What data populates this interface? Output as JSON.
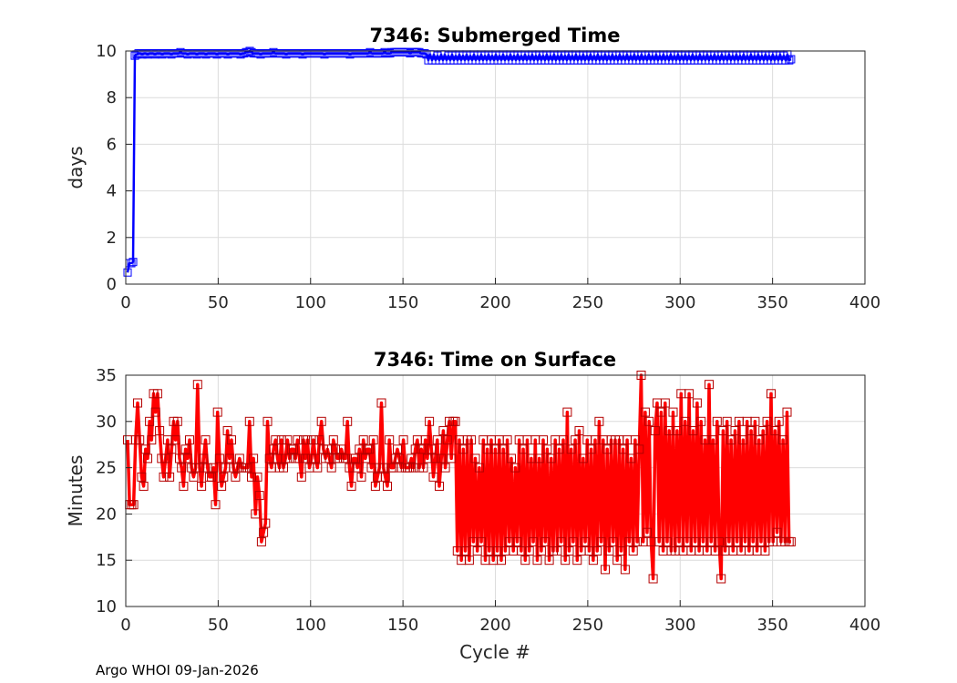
{
  "footer": "Argo WHOI 09-Jan-2026",
  "colors": {
    "series_top": "#0000ff",
    "series_bottom": "#ff0000",
    "marker_bottom": "#b40000",
    "grid": "#dcdcdc",
    "axes": "#262626"
  },
  "chart_data": [
    {
      "type": "line",
      "title": "7346: Submerged Time",
      "xlabel": "",
      "ylabel": "days",
      "xlim": [
        0,
        400
      ],
      "ylim": [
        0,
        10
      ],
      "xticks": [
        "0",
        "50",
        "100",
        "150",
        "200",
        "250",
        "300",
        "350",
        "400"
      ],
      "yticks": [
        "0",
        "2",
        "4",
        "6",
        "8",
        "10"
      ],
      "grid": true,
      "marker": "square",
      "series": [
        {
          "cycle_range": [
            1,
            360
          ],
          "values": [
            0.5,
            0.9,
            0.9,
            0.95,
            9.8,
            9.85,
            9.9,
            9.9,
            9.85,
            9.9,
            9.9,
            9.85,
            9.9,
            9.9,
            9.9,
            9.85,
            9.9,
            9.9,
            9.9,
            9.85,
            9.9,
            9.9,
            9.9,
            9.9,
            9.85,
            9.9,
            9.9,
            9.9,
            9.9,
            9.95,
            9.9,
            9.9,
            9.9,
            9.85,
            9.9,
            9.9,
            9.9,
            9.9,
            9.85,
            9.9,
            9.9,
            9.9,
            9.9,
            9.85,
            9.9,
            9.9,
            9.9,
            9.9,
            9.9,
            9.85,
            9.9,
            9.9,
            9.9,
            9.9,
            9.9,
            9.85,
            9.9,
            9.9,
            9.9,
            9.9,
            9.9,
            9.9,
            9.85,
            9.9,
            9.9,
            9.95,
            9.95,
            10.0,
            9.95,
            9.9,
            9.9,
            9.9,
            9.9,
            9.85,
            9.9,
            9.9,
            9.9,
            9.9,
            9.9,
            9.9,
            9.95,
            9.9,
            9.9,
            9.9,
            9.9,
            9.9,
            9.9,
            9.85,
            9.9,
            9.9,
            9.9,
            9.9,
            9.9,
            9.9,
            9.9,
            9.9,
            9.85,
            9.9,
            9.9,
            9.9,
            9.9,
            9.9,
            9.9,
            9.9,
            9.9,
            9.9,
            9.9,
            9.9,
            9.85,
            9.9,
            9.9,
            9.9,
            9.9,
            9.9,
            9.9,
            9.9,
            9.9,
            9.9,
            9.9,
            9.9,
            9.9,
            9.9,
            9.85,
            9.9,
            9.9,
            9.9,
            9.9,
            9.9,
            9.9,
            9.9,
            9.9,
            9.9,
            9.9,
            9.95,
            9.9,
            9.9,
            9.9,
            9.9,
            9.9,
            9.9,
            9.9,
            9.95,
            9.9,
            9.9,
            9.9,
            9.95,
            9.95,
            9.95,
            9.95,
            9.95,
            9.95,
            9.95,
            9.95,
            9.95,
            9.95,
            9.9,
            9.95,
            9.95,
            9.95,
            9.95,
            9.95,
            9.9,
            9.9,
            9.9,
            9.85,
            9.6,
            9.85,
            9.6,
            9.85,
            9.6,
            9.8,
            9.6,
            9.85,
            9.6,
            9.85,
            9.6,
            9.8,
            9.6,
            9.85,
            9.6,
            9.8,
            9.6,
            9.85,
            9.6,
            9.8,
            9.6,
            9.85,
            9.6,
            9.8,
            9.6,
            9.85,
            9.6,
            9.8,
            9.6,
            9.85,
            9.6,
            9.8,
            9.6,
            9.85,
            9.6,
            9.8,
            9.6,
            9.85,
            9.6,
            9.8,
            9.6,
            9.85,
            9.6,
            9.8,
            9.6,
            9.85,
            9.6,
            9.8,
            9.6,
            9.85,
            9.6,
            9.8,
            9.6,
            9.85,
            9.6,
            9.8,
            9.6,
            9.85,
            9.6,
            9.8,
            9.6,
            9.85,
            9.6,
            9.8,
            9.6,
            9.85,
            9.6,
            9.8,
            9.6,
            9.85,
            9.6,
            9.8,
            9.6,
            9.85,
            9.6,
            9.8,
            9.6,
            9.85,
            9.6,
            9.8,
            9.6,
            9.85,
            9.6,
            9.8,
            9.6,
            9.85,
            9.6,
            9.8,
            9.6,
            9.85,
            9.6,
            9.8,
            9.6,
            9.85,
            9.6,
            9.8,
            9.6,
            9.85,
            9.6,
            9.8,
            9.6,
            9.85,
            9.6,
            9.8,
            9.6,
            9.85,
            9.6,
            9.8,
            9.6,
            9.85,
            9.6,
            9.8,
            9.6,
            9.85,
            9.6,
            9.8,
            9.6,
            9.85,
            9.6,
            9.8,
            9.6,
            9.85,
            9.6,
            9.8,
            9.6,
            9.85,
            9.6,
            9.8,
            9.6,
            9.85,
            9.6,
            9.8,
            9.6,
            9.85,
            9.6,
            9.8,
            9.6,
            9.85,
            9.6,
            9.8,
            9.6,
            9.85,
            9.6,
            9.8,
            9.6,
            9.85,
            9.6,
            9.8,
            9.6,
            9.85,
            9.6,
            9.8,
            9.6,
            9.85,
            9.6,
            9.8,
            9.6,
            9.85,
            9.6,
            9.8,
            9.6,
            9.85,
            9.6,
            9.8,
            9.6,
            9.85,
            9.6,
            9.8,
            9.6,
            9.85,
            9.6,
            9.8,
            9.6,
            9.85,
            9.6,
            9.8,
            9.6,
            9.85,
            9.6,
            9.8,
            9.6,
            9.85,
            9.6,
            9.8,
            9.6,
            9.85,
            9.6,
            9.8,
            9.6,
            9.85,
            9.6,
            9.8,
            9.6,
            9.85,
            9.6,
            9.8,
            9.6,
            9.85,
            9.6,
            9.65
          ]
        }
      ]
    },
    {
      "type": "line",
      "title": "7346: Time on Surface",
      "xlabel": "Cycle #",
      "ylabel": "Minutes",
      "xlim": [
        0,
        400
      ],
      "ylim": [
        10,
        35
      ],
      "xticks": [
        "0",
        "50",
        "100",
        "150",
        "200",
        "250",
        "300",
        "350",
        "400"
      ],
      "yticks": [
        "10",
        "15",
        "20",
        "25",
        "30",
        "35"
      ],
      "grid": true,
      "marker": "square",
      "series": [
        {
          "cycle_range": [
            1,
            360
          ],
          "values": [
            28,
            21,
            21,
            21,
            28,
            32,
            28,
            24,
            23,
            27,
            26,
            30,
            28,
            33,
            31,
            33,
            29,
            26,
            24,
            26,
            28,
            24,
            27,
            30,
            28,
            30,
            26,
            25,
            23,
            27,
            26,
            28,
            25,
            24,
            25,
            34,
            25,
            23,
            26,
            28,
            25,
            24,
            24,
            25,
            21,
            31,
            26,
            23,
            24,
            25,
            29,
            26,
            28,
            25,
            24,
            25,
            26,
            25,
            25,
            25,
            25,
            30,
            24,
            26,
            20,
            24,
            22,
            17,
            18,
            19,
            30,
            26,
            25,
            27,
            28,
            26,
            25,
            28,
            25,
            26,
            28,
            26,
            27,
            27,
            26,
            28,
            26,
            24,
            28,
            26,
            28,
            25,
            26,
            28,
            26,
            25,
            28,
            30,
            27,
            26,
            27,
            26,
            25,
            28,
            27,
            26,
            26,
            27,
            26,
            26,
            30,
            25,
            23,
            26,
            26,
            25,
            27,
            24,
            28,
            26,
            27,
            27,
            25,
            28,
            23,
            24,
            25,
            32,
            25,
            24,
            23,
            28,
            25,
            25,
            26,
            27,
            26,
            25,
            28,
            25,
            25,
            25,
            26,
            25,
            27,
            28,
            25,
            27,
            25,
            28,
            26,
            30,
            27,
            24,
            26,
            28,
            23,
            26,
            29,
            25,
            28,
            30,
            26,
            30,
            30,
            16,
            28,
            15,
            27,
            16,
            28,
            15,
            28,
            17,
            26,
            16,
            25,
            17,
            28,
            15,
            27,
            16,
            28,
            15,
            27,
            16,
            28,
            15,
            27,
            16,
            28,
            17,
            26,
            16,
            25,
            17,
            28,
            16,
            27,
            15,
            28,
            16,
            26,
            17,
            28,
            15,
            26,
            16,
            28,
            17,
            27,
            15,
            26,
            16,
            28,
            16,
            27,
            17,
            28,
            15,
            31,
            16,
            27,
            17,
            28,
            15,
            29,
            16,
            26,
            17,
            28,
            16,
            27,
            15,
            28,
            16,
            30,
            17,
            28,
            14,
            27,
            16,
            28,
            17,
            28,
            15,
            28,
            16,
            27,
            14,
            28,
            17,
            26,
            16,
            28,
            17,
            27,
            35,
            17,
            31,
            18,
            30,
            17,
            13,
            29,
            32,
            17,
            31,
            16,
            32,
            17,
            29,
            16,
            31,
            16,
            29,
            17,
            33,
            16,
            30,
            17,
            33,
            16,
            29,
            17,
            32,
            16,
            30,
            17,
            28,
            16,
            34,
            17,
            28,
            16,
            30,
            17,
            13,
            29,
            16,
            30,
            17,
            28,
            16,
            29,
            17,
            30,
            16,
            28,
            17,
            30,
            16,
            29,
            17,
            30,
            16,
            28,
            17,
            29,
            16,
            30,
            17,
            33,
            17,
            29,
            18,
            30,
            17,
            28,
            17,
            31,
            17,
            17
          ]
        }
      ]
    }
  ]
}
